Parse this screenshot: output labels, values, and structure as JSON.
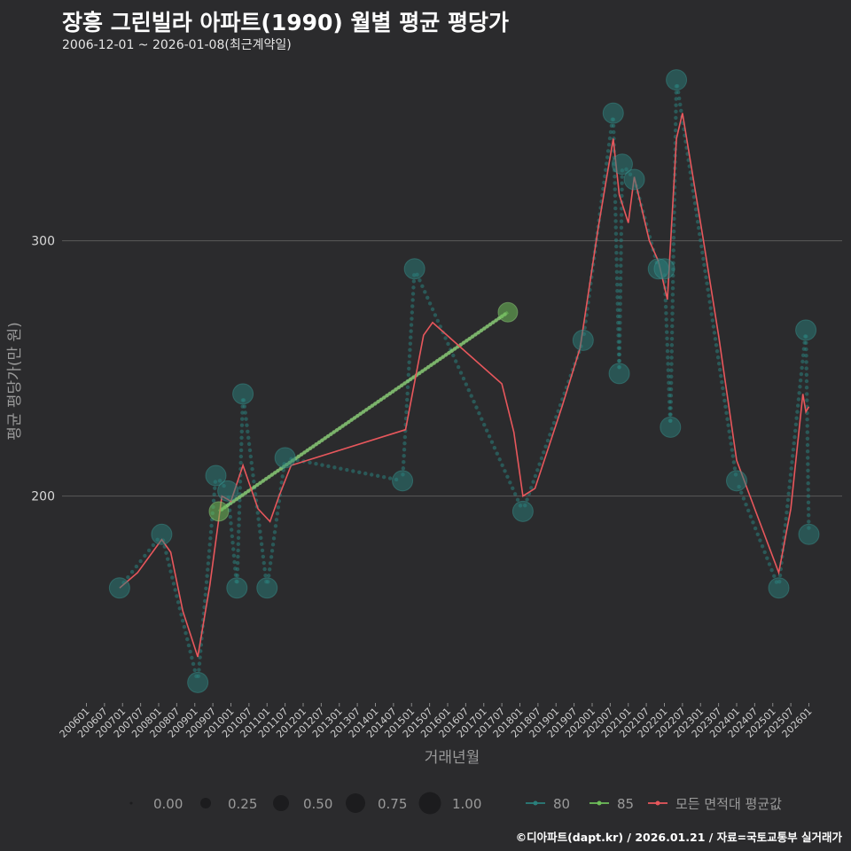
{
  "title": "장흥 그린빌라 아파트(1990) 월별 평균 평당가",
  "subtitle": "2006-12-01 ~ 2026-01-08(최근계약일)",
  "caption": "©디아파트(dapt.kr) / 2026.01.21 / 자료=국토교통부 실거래가",
  "colors": {
    "background": "#2b2b2d",
    "grid": "#5a5a5a",
    "series_80": "#2a7f7b",
    "series_85": "#6fbf5a",
    "series_all": "#e8575c"
  },
  "chart_data": {
    "type": "line",
    "xlabel": "거래년월",
    "ylabel": "평균 평당가(만 원)",
    "x_range": [
      "2006-01",
      "2026-01"
    ],
    "y_range": [
      120,
      370
    ],
    "y_ticks": [
      200,
      300
    ],
    "x_ticks": [
      "200601",
      "200607",
      "200701",
      "200707",
      "200801",
      "200807",
      "200901",
      "200907",
      "201001",
      "201007",
      "201101",
      "201107",
      "201201",
      "201207",
      "201301",
      "201307",
      "201401",
      "201407",
      "201501",
      "201507",
      "201601",
      "201607",
      "201701",
      "201707",
      "201801",
      "201807",
      "201901",
      "201907",
      "202001",
      "202007",
      "202101",
      "202107",
      "202201",
      "202207",
      "202301",
      "202307",
      "202401",
      "202407",
      "202501",
      "202507",
      "202601"
    ],
    "series": [
      {
        "name": "80",
        "points": [
          {
            "x": "2006-12",
            "y": 164
          },
          {
            "x": "2008-02",
            "y": 185
          },
          {
            "x": "2009-02",
            "y": 127
          },
          {
            "x": "2009-08",
            "y": 208
          },
          {
            "x": "2009-12",
            "y": 202
          },
          {
            "x": "2010-03",
            "y": 164
          },
          {
            "x": "2010-05",
            "y": 240
          },
          {
            "x": "2011-01",
            "y": 164
          },
          {
            "x": "2011-07",
            "y": 215
          },
          {
            "x": "2014-10",
            "y": 206
          },
          {
            "x": "2015-02",
            "y": 289
          },
          {
            "x": "2018-02",
            "y": 194
          },
          {
            "x": "2019-10",
            "y": 261
          },
          {
            "x": "2020-08",
            "y": 350
          },
          {
            "x": "2020-10",
            "y": 248
          },
          {
            "x": "2020-11",
            "y": 330
          },
          {
            "x": "2021-03",
            "y": 324
          },
          {
            "x": "2021-11",
            "y": 289
          },
          {
            "x": "2022-01",
            "y": 289
          },
          {
            "x": "2022-03",
            "y": 227
          },
          {
            "x": "2022-05",
            "y": 363
          },
          {
            "x": "2024-01",
            "y": 206
          },
          {
            "x": "2025-03",
            "y": 164
          },
          {
            "x": "2025-12",
            "y": 265
          },
          {
            "x": "2026-01",
            "y": 185
          }
        ]
      },
      {
        "name": "85",
        "points": [
          {
            "x": "2009-09",
            "y": 194
          },
          {
            "x": "2017-09",
            "y": 272
          }
        ]
      },
      {
        "name": "모든 면적대 평균값",
        "points": [
          {
            "x": "2006-12",
            "y": 164
          },
          {
            "x": "2007-06",
            "y": 170
          },
          {
            "x": "2008-02",
            "y": 183
          },
          {
            "x": "2008-05",
            "y": 178
          },
          {
            "x": "2008-09",
            "y": 155
          },
          {
            "x": "2009-02",
            "y": 137
          },
          {
            "x": "2009-06",
            "y": 165
          },
          {
            "x": "2009-10",
            "y": 200
          },
          {
            "x": "2010-01",
            "y": 198
          },
          {
            "x": "2010-05",
            "y": 212
          },
          {
            "x": "2010-10",
            "y": 195
          },
          {
            "x": "2011-02",
            "y": 190
          },
          {
            "x": "2011-05",
            "y": 200
          },
          {
            "x": "2011-09",
            "y": 212
          },
          {
            "x": "2014-11",
            "y": 226
          },
          {
            "x": "2015-05",
            "y": 263
          },
          {
            "x": "2015-08",
            "y": 268
          },
          {
            "x": "2017-07",
            "y": 244
          },
          {
            "x": "2017-11",
            "y": 225
          },
          {
            "x": "2018-02",
            "y": 200
          },
          {
            "x": "2018-06",
            "y": 203
          },
          {
            "x": "2019-03",
            "y": 235
          },
          {
            "x": "2019-09",
            "y": 258
          },
          {
            "x": "2020-03",
            "y": 305
          },
          {
            "x": "2020-08",
            "y": 340
          },
          {
            "x": "2020-10",
            "y": 318
          },
          {
            "x": "2021-01",
            "y": 307
          },
          {
            "x": "2021-03",
            "y": 325
          },
          {
            "x": "2021-08",
            "y": 300
          },
          {
            "x": "2021-11",
            "y": 292
          },
          {
            "x": "2022-02",
            "y": 277
          },
          {
            "x": "2022-05",
            "y": 340
          },
          {
            "x": "2022-07",
            "y": 350
          },
          {
            "x": "2023-02",
            "y": 300
          },
          {
            "x": "2023-07",
            "y": 263
          },
          {
            "x": "2024-01",
            "y": 214
          },
          {
            "x": "2024-07",
            "y": 195
          },
          {
            "x": "2025-03",
            "y": 170
          },
          {
            "x": "2025-07",
            "y": 195
          },
          {
            "x": "2025-11",
            "y": 240
          },
          {
            "x": "2025-12",
            "y": 233
          },
          {
            "x": "2026-01",
            "y": 235
          }
        ]
      }
    ],
    "legend_size": {
      "title": "",
      "items": [
        "0.00",
        "0.25",
        "0.50",
        "0.75",
        "1.00"
      ]
    },
    "legend_color": [
      "80",
      "85",
      "모든 면적대 평균값"
    ]
  }
}
